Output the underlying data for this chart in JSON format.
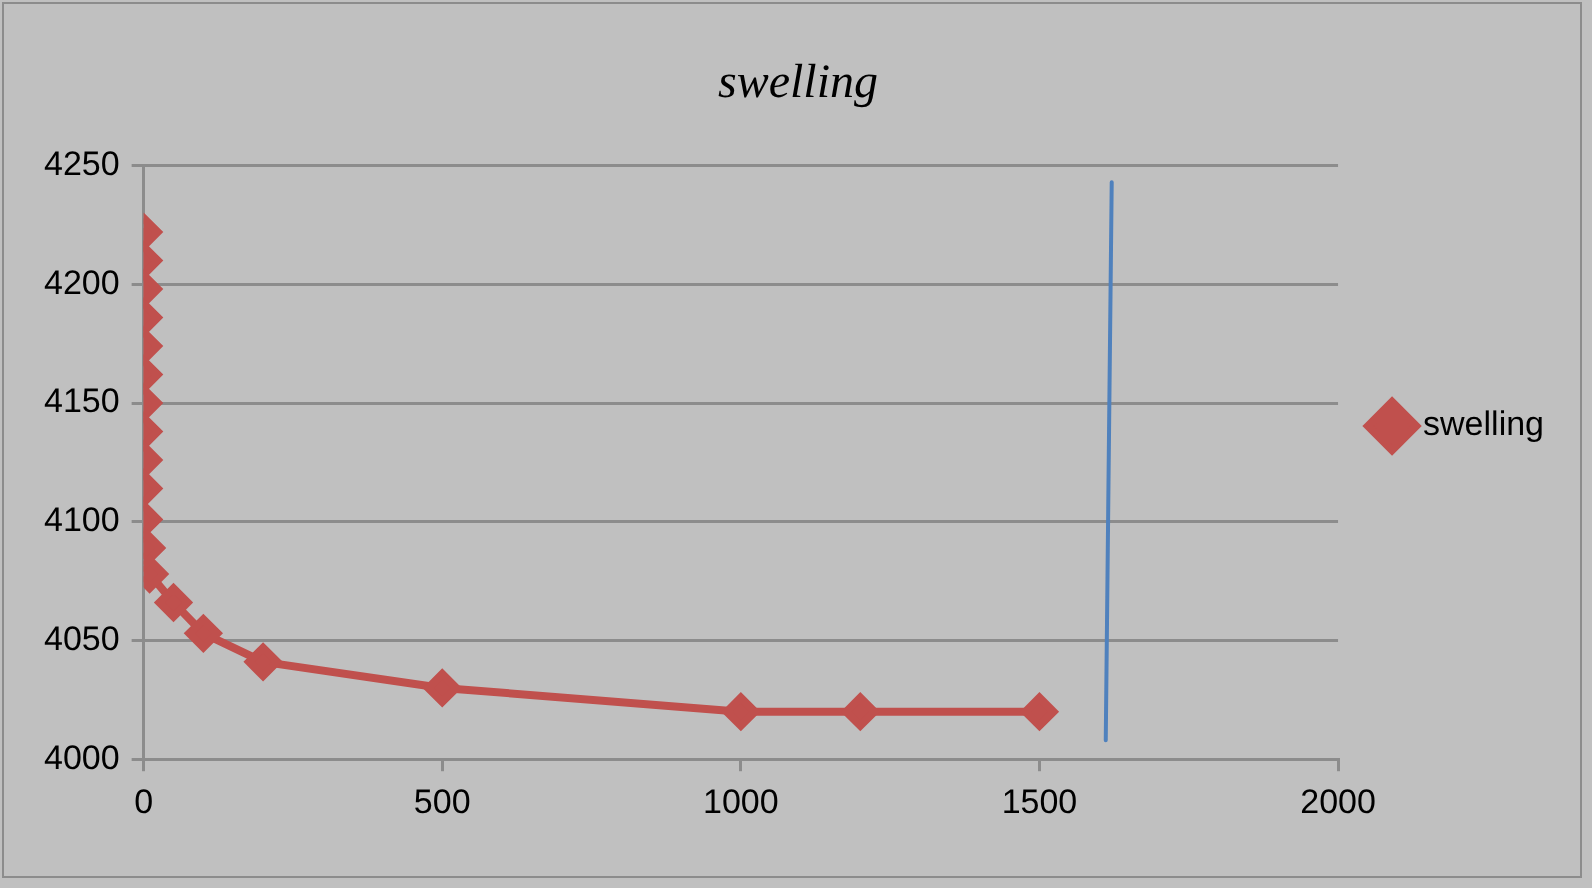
{
  "chart_data": {
    "type": "line",
    "title": "swelling",
    "xlim": [
      0,
      2000
    ],
    "xticks": [
      0,
      500,
      1000,
      1500,
      2000
    ],
    "ylim": [
      4000,
      4250
    ],
    "yticks": [
      4000,
      4050,
      4100,
      4150,
      4200,
      4250
    ],
    "grid": "y",
    "legend": "right",
    "marker": "diamond",
    "series": [
      {
        "name": "swelling",
        "color": "#c0504d",
        "x": [
          0,
          0,
          0,
          0,
          0,
          0,
          0,
          0,
          0,
          0,
          0,
          5,
          10,
          50,
          100,
          200,
          500,
          1000,
          1200,
          1500
        ],
        "values": [
          4222,
          4210,
          4198,
          4186,
          4174,
          4162,
          4150,
          4138,
          4126,
          4114,
          4101,
          4089,
          4078,
          4066,
          4053,
          4041,
          4030,
          4020,
          4020,
          4020
        ]
      },
      {
        "color": "#4f81bd",
        "marker": "none",
        "x": [
          1621,
          1611
        ],
        "values": [
          4243,
          4008
        ]
      }
    ]
  }
}
